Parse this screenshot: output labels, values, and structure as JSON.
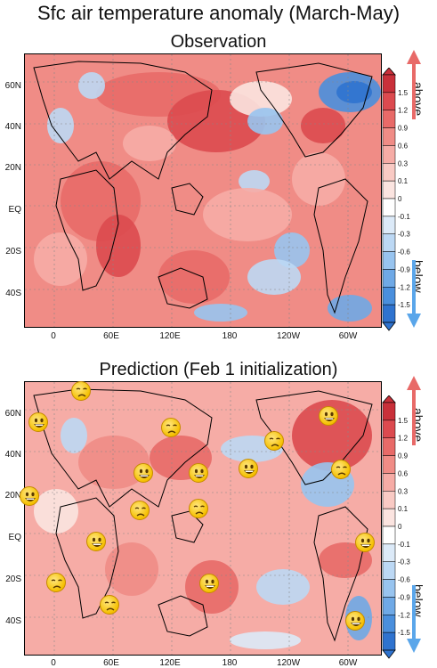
{
  "title": "Sfc air temperature anomaly (March-May)",
  "panels": [
    {
      "title": "Observation"
    },
    {
      "title": "Prediction (Feb 1 initialization)"
    }
  ],
  "axes": {
    "lat_labels": [
      "60N",
      "40N",
      "20N",
      "EQ",
      "20S",
      "40S"
    ],
    "lon_labels": [
      "0",
      "60E",
      "120E",
      "180",
      "120W",
      "60W"
    ]
  },
  "colorbar": {
    "ticks": [
      "1.5",
      "1.2",
      "0.9",
      "0.6",
      "0.3",
      "0.1",
      "0",
      "-0.1",
      "-0.3",
      "-0.6",
      "-0.9",
      "-1.2",
      "-1.5"
    ],
    "colors": [
      "#c9303a",
      "#dc4a4f",
      "#e86a68",
      "#f08c86",
      "#f6aca6",
      "#f9cac4",
      "#fbe4e0",
      "#ffffff",
      "#dceaf8",
      "#bcd8f4",
      "#98c4ef",
      "#6fa9e6",
      "#4a8fdd",
      "#2f73cf"
    ],
    "above_label": "above",
    "below_label": "below",
    "above_color": "#e86a68",
    "below_color": "#5aa6ea"
  },
  "predictions": [
    {
      "mood": "sad"
    },
    {
      "mood": "happy"
    },
    {
      "mood": "sad"
    },
    {
      "mood": "happy"
    },
    {
      "mood": "sad"
    },
    {
      "mood": "happy"
    },
    {
      "mood": "happy"
    },
    {
      "mood": "happy"
    },
    {
      "mood": "happy"
    },
    {
      "mood": "sad"
    },
    {
      "mood": "happy"
    },
    {
      "mood": "sad"
    },
    {
      "mood": "sad"
    },
    {
      "mood": "happy"
    },
    {
      "mood": "happy"
    },
    {
      "mood": "sad"
    },
    {
      "mood": "happy"
    },
    {
      "mood": "sad"
    },
    {
      "mood": "happy"
    }
  ]
}
